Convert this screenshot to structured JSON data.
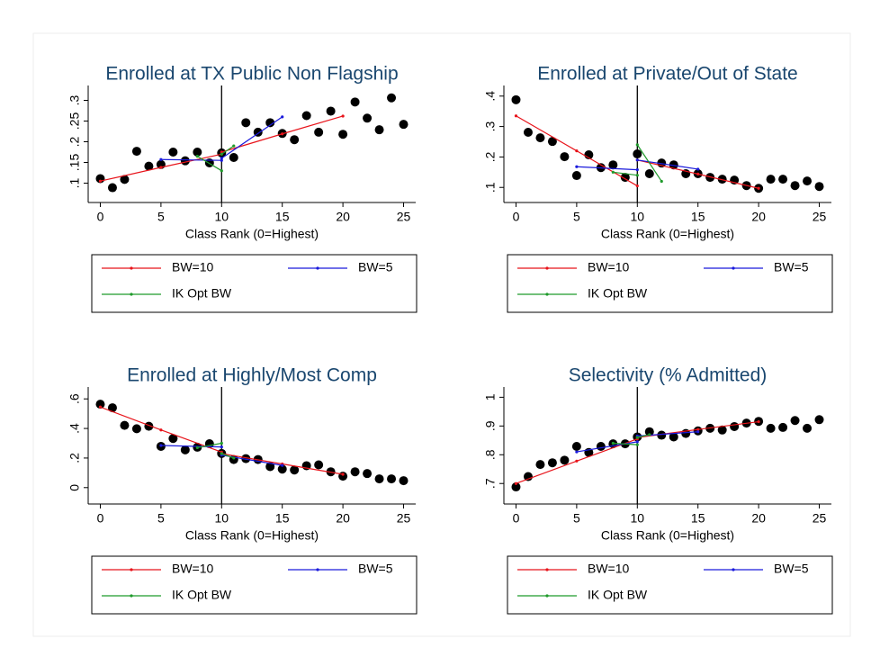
{
  "chart_data": [
    {
      "type": "scatter",
      "title": "Enrolled at TX Public Non Flagship",
      "x_label": "Class Rank (0=Highest)",
      "x": [
        0,
        1,
        2,
        3,
        4,
        5,
        6,
        7,
        8,
        9,
        10,
        11,
        12,
        13,
        14,
        15,
        16,
        17,
        18,
        19,
        20,
        21,
        22,
        23,
        24,
        25
      ],
      "values": [
        0.111,
        0.089,
        0.109,
        0.177,
        0.141,
        0.145,
        0.175,
        0.154,
        0.175,
        0.149,
        0.173,
        0.162,
        0.246,
        0.223,
        0.246,
        0.22,
        0.205,
        0.263,
        0.223,
        0.274,
        0.218,
        0.296,
        0.257,
        0.229,
        0.306,
        0.242
      ],
      "color": "#000000",
      "xline": 10,
      "xlim": [
        -1,
        26
      ],
      "xticks": [
        0,
        5,
        10,
        15,
        20,
        25
      ],
      "ylim": [
        0.075,
        0.325
      ],
      "yticks": [
        {
          "value": 0.1,
          "label": ".1"
        },
        {
          "value": 0.15,
          "label": ".15"
        },
        {
          "value": 0.2,
          "label": ".2"
        },
        {
          "value": 0.25,
          "label": ".25"
        },
        {
          "value": 0.3,
          "label": ".3"
        }
      ],
      "series": [
        {
          "name": "BW=10",
          "color": "#e8141b",
          "x": [
            0,
            5,
            10,
            null,
            10,
            15,
            20
          ],
          "values": [
            0.105,
            0.138,
            0.17,
            null,
            0.175,
            0.219,
            0.262
          ]
        },
        {
          "name": "BW=5",
          "color": "#1a1adc",
          "x": [
            5,
            10,
            null,
            10,
            15
          ],
          "values": [
            0.157,
            0.155,
            null,
            0.16,
            0.26
          ]
        },
        {
          "name": "IK Opt BW",
          "color": "#1f9a2b",
          "x": [
            8,
            10,
            null,
            10,
            11
          ],
          "values": [
            0.165,
            0.13,
            null,
            0.17,
            0.19
          ]
        }
      ]
    },
    {
      "type": "scatter",
      "title": "Enrolled at Private/Out of State",
      "x_label": "Class Rank (0=Highest)",
      "x": [
        0,
        1,
        2,
        3,
        4,
        5,
        6,
        7,
        8,
        9,
        10,
        11,
        12,
        13,
        14,
        15,
        16,
        17,
        18,
        19,
        20,
        21,
        22,
        23,
        24,
        25
      ],
      "values": [
        0.388,
        0.281,
        0.263,
        0.251,
        0.201,
        0.139,
        0.207,
        0.165,
        0.174,
        0.133,
        0.21,
        0.145,
        0.18,
        0.174,
        0.145,
        0.145,
        0.133,
        0.127,
        0.124,
        0.106,
        0.097,
        0.127,
        0.127,
        0.106,
        0.121,
        0.103
      ],
      "color": "#000000",
      "xline": 10,
      "xlim": [
        -1,
        26
      ],
      "xticks": [
        0,
        5,
        10,
        15,
        20,
        25
      ],
      "ylim": [
        0.08,
        0.42
      ],
      "yticks": [
        {
          "value": 0.1,
          "label": ".1"
        },
        {
          "value": 0.2,
          "label": ".2"
        },
        {
          "value": 0.3,
          "label": ".3"
        },
        {
          "value": 0.4,
          "label": ".4"
        }
      ],
      "series": [
        {
          "name": "BW=10",
          "color": "#e8141b",
          "x": [
            0,
            5,
            10,
            null,
            10,
            15,
            20
          ],
          "values": [
            0.335,
            0.22,
            0.105,
            null,
            0.19,
            0.144,
            0.097
          ]
        },
        {
          "name": "BW=5",
          "color": "#1a1adc",
          "x": [
            5,
            10,
            null,
            10,
            15
          ],
          "values": [
            0.168,
            0.158,
            null,
            0.19,
            0.16
          ]
        },
        {
          "name": "IK Opt BW",
          "color": "#1f9a2b",
          "x": [
            8,
            10,
            null,
            10,
            12
          ],
          "values": [
            0.15,
            0.14,
            null,
            0.24,
            0.12
          ]
        }
      ]
    },
    {
      "type": "scatter",
      "title": "Enrolled at Highly/Most Comp",
      "x_label": "Class Rank (0=Highest)",
      "x": [
        0,
        1,
        2,
        3,
        4,
        5,
        6,
        7,
        8,
        9,
        10,
        11,
        12,
        13,
        14,
        15,
        16,
        17,
        18,
        19,
        20,
        21,
        22,
        23,
        24,
        25
      ],
      "values": [
        0.564,
        0.54,
        0.421,
        0.398,
        0.415,
        0.279,
        0.332,
        0.255,
        0.273,
        0.297,
        0.231,
        0.19,
        0.196,
        0.19,
        0.142,
        0.125,
        0.119,
        0.148,
        0.154,
        0.107,
        0.077,
        0.107,
        0.095,
        0.059,
        0.059,
        0.047
      ],
      "color": "#000000",
      "xline": 10,
      "xlim": [
        -1,
        26
      ],
      "xticks": [
        0,
        5,
        10,
        15,
        20,
        25
      ],
      "ylim": [
        -0.05,
        0.65
      ],
      "yticks": [
        0,
        {
          "value": 0.2,
          "label": ".2"
        },
        {
          "value": 0.4,
          "label": ".4"
        },
        {
          "value": 0.6,
          "label": ".6"
        }
      ],
      "series": [
        {
          "name": "BW=10",
          "color": "#e8141b",
          "x": [
            0,
            5,
            10,
            null,
            10,
            15,
            20
          ],
          "values": [
            0.545,
            0.39,
            0.24,
            null,
            0.23,
            0.16,
            0.09
          ]
        },
        {
          "name": "BW=5",
          "color": "#1a1adc",
          "x": [
            5,
            10,
            null,
            10,
            15
          ],
          "values": [
            0.285,
            0.275,
            null,
            0.22,
            0.15
          ]
        },
        {
          "name": "IK Opt BW",
          "color": "#1f9a2b",
          "x": [
            8,
            10,
            null,
            10,
            11
          ],
          "values": [
            0.27,
            0.3,
            null,
            0.23,
            0.2
          ]
        }
      ]
    },
    {
      "type": "scatter",
      "title": "Selectivity (% Admitted)",
      "x_label": "Class Rank (0=Highest)",
      "x": [
        0,
        1,
        2,
        3,
        4,
        5,
        6,
        7,
        8,
        9,
        10,
        11,
        12,
        13,
        14,
        15,
        16,
        17,
        18,
        19,
        20,
        21,
        22,
        23,
        24,
        25
      ],
      "values": [
        0.688,
        0.724,
        0.766,
        0.772,
        0.781,
        0.829,
        0.808,
        0.829,
        0.838,
        0.838,
        0.862,
        0.88,
        0.868,
        0.862,
        0.874,
        0.883,
        0.892,
        0.886,
        0.898,
        0.91,
        0.916,
        0.892,
        0.895,
        0.919,
        0.892,
        0.922
      ],
      "color": "#000000",
      "xline": 10,
      "xlim": [
        -1,
        26
      ],
      "xticks": [
        0,
        5,
        10,
        15,
        20,
        25
      ],
      "ylim": [
        0.66,
        1.02
      ],
      "yticks": [
        {
          "value": 0.7,
          "label": ".7"
        },
        {
          "value": 0.8,
          "label": ".8"
        },
        {
          "value": 0.9,
          "label": ".9"
        },
        1
      ],
      "series": [
        {
          "name": "BW=10",
          "color": "#e8141b",
          "x": [
            0,
            5,
            10,
            null,
            10,
            15,
            20
          ],
          "values": [
            0.7,
            0.778,
            0.855,
            null,
            0.86,
            0.888,
            0.915
          ]
        },
        {
          "name": "BW=5",
          "color": "#1a1adc",
          "x": [
            5,
            10,
            null,
            10,
            15
          ],
          "values": [
            0.81,
            0.845,
            null,
            0.865,
            0.88
          ]
        },
        {
          "name": "IK Opt BW",
          "color": "#1f9a2b",
          "x": [
            8,
            10,
            null,
            10,
            11
          ],
          "values": [
            0.84,
            0.835,
            null,
            0.86,
            0.87
          ]
        }
      ]
    }
  ]
}
